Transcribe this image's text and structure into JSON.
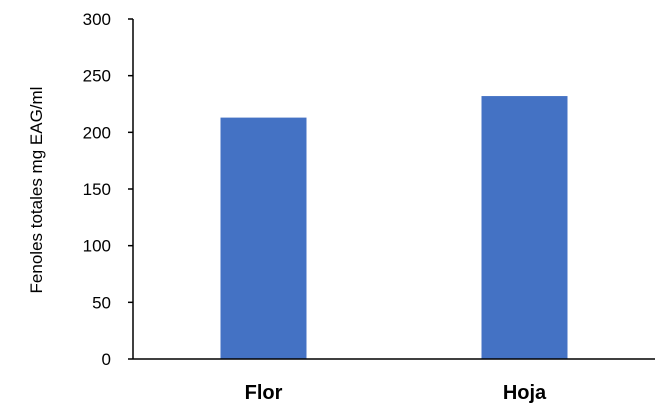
{
  "chart_data": {
    "type": "bar",
    "categories": [
      "Flor",
      "Hoja"
    ],
    "values": [
      213,
      232
    ],
    "ylabel": "Fenoles totales  mg EAG/ml",
    "xlabel": "",
    "ylim": [
      0,
      300
    ],
    "yticks": [
      "0",
      "50",
      "100",
      "150",
      "200",
      "250",
      "300"
    ],
    "grid": false,
    "bar_color": "#4472C4"
  }
}
